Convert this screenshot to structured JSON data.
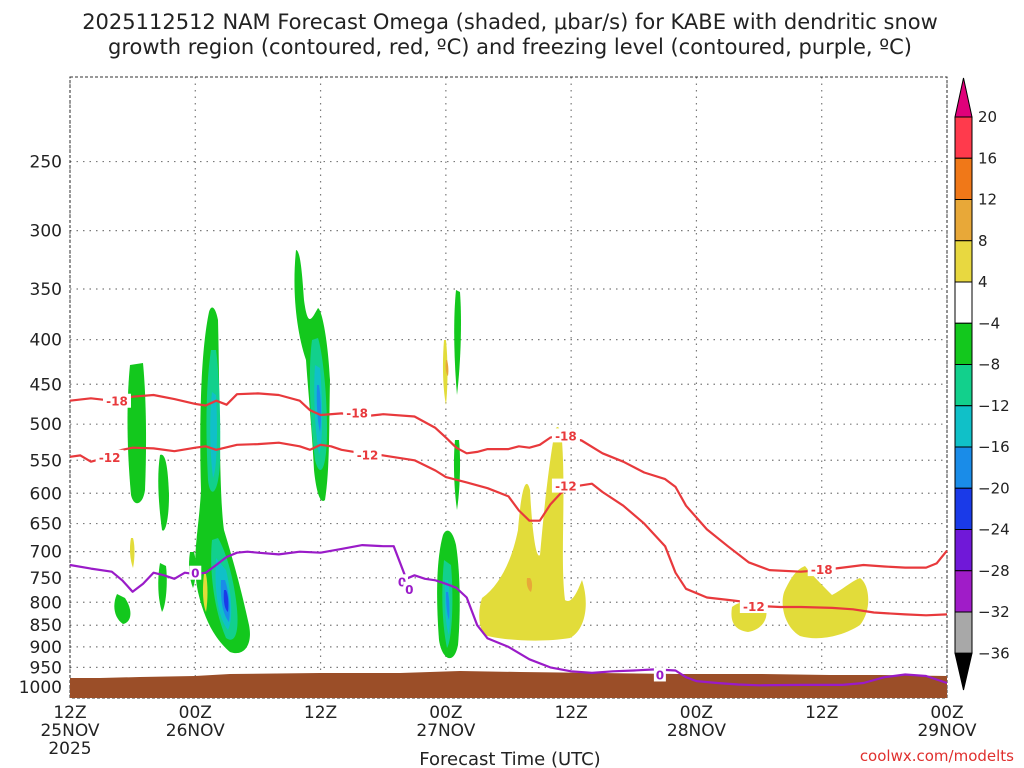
{
  "chart_data": {
    "type": "time-height cross section",
    "title_lines": [
      "2025112512 NAM Forecast Omega (shaded, μbar/s) for KABE with dendritic snow",
      "growth region (contoured, red, ºC) and freezing level (contoured, purple, ºC)"
    ],
    "xlabel": "Forecast Time (UTC)",
    "ylabel": "",
    "x_ticks": [
      {
        "hour": 0,
        "time": "12Z",
        "date": "25NOV",
        "year": "2025"
      },
      {
        "hour": 12,
        "time": "00Z",
        "date": "26NOV",
        "year": ""
      },
      {
        "hour": 24,
        "time": "12Z",
        "date": "",
        "year": ""
      },
      {
        "hour": 36,
        "time": "00Z",
        "date": "27NOV",
        "year": ""
      },
      {
        "hour": 48,
        "time": "12Z",
        "date": "",
        "year": ""
      },
      {
        "hour": 60,
        "time": "00Z",
        "date": "28NOV",
        "year": ""
      },
      {
        "hour": 72,
        "time": "12Z",
        "date": "",
        "year": ""
      },
      {
        "hour": 84,
        "time": "00Z",
        "date": "29NOV",
        "year": ""
      }
    ],
    "x_range_hours": [
      0,
      84
    ],
    "y_levels_hpa": [
      250,
      300,
      350,
      400,
      450,
      500,
      550,
      600,
      650,
      700,
      750,
      800,
      850,
      900,
      950,
      1000
    ],
    "y_range_hpa": [
      200,
      1030
    ],
    "grid": true,
    "colorbar": {
      "ticks": [
        "20",
        "16",
        "12",
        "8",
        "4",
        "−4",
        "−8",
        "−12",
        "−16",
        "−20",
        "−24",
        "−28",
        "−32",
        "−36"
      ],
      "colors": [
        "#ff3a4c",
        "#f07818",
        "#e8a838",
        "#e8d840",
        "#ffffff",
        "#13c81d",
        "#12d08c",
        "#10c0c8",
        "#1a8ce8",
        "#1a3ae8",
        "#7018d8",
        "#a01cc8",
        "#a8a8a8"
      ],
      "top_arrow_color": "#e0007a",
      "bottom_arrow_color": "#000000"
    },
    "contour_labels": [
      {
        "text": "-18",
        "hour": 4.5,
        "hpa": 470,
        "color": "#e8393c"
      },
      {
        "text": "-18",
        "hour": 27.5,
        "hpa": 485,
        "color": "#e8393c"
      },
      {
        "text": "-18",
        "hour": 47.5,
        "hpa": 515,
        "color": "#e8393c"
      },
      {
        "text": "-18",
        "hour": 72.0,
        "hpa": 733,
        "color": "#e8393c"
      },
      {
        "text": "-12",
        "hour": 3.8,
        "hpa": 545,
        "color": "#e8393c"
      },
      {
        "text": "-12",
        "hour": 28.5,
        "hpa": 542,
        "color": "#e8393c"
      },
      {
        "text": "-12",
        "hour": 47.5,
        "hpa": 588,
        "color": "#e8393c"
      },
      {
        "text": "-12",
        "hour": 65.5,
        "hpa": 808,
        "color": "#e8393c"
      },
      {
        "text": "0",
        "hour": 12.0,
        "hpa": 740,
        "color": "#9a1bc8"
      },
      {
        "text": "0",
        "hour": 31.8,
        "hpa": 757,
        "color": "#9a1bc8"
      },
      {
        "text": "0",
        "hour": 32.5,
        "hpa": 772,
        "color": "#9a1bc8"
      },
      {
        "text": "0",
        "hour": 56.5,
        "hpa": 968,
        "color": "#9a1bc8"
      }
    ],
    "series": [
      {
        "name": "-18C isotherm",
        "color": "#e8393c",
        "points": [
          [
            0,
            470
          ],
          [
            2,
            467
          ],
          [
            4,
            470
          ],
          [
            6,
            465
          ],
          [
            8,
            463
          ],
          [
            10,
            468
          ],
          [
            12,
            474
          ],
          [
            13,
            476
          ],
          [
            14,
            470
          ],
          [
            15,
            475
          ],
          [
            16,
            462
          ],
          [
            18,
            461
          ],
          [
            20,
            463
          ],
          [
            22,
            470
          ],
          [
            23,
            482
          ],
          [
            24,
            488
          ],
          [
            26,
            486
          ],
          [
            28,
            490
          ],
          [
            30,
            487
          ],
          [
            33,
            490
          ],
          [
            35,
            505
          ],
          [
            36,
            518
          ],
          [
            37,
            532
          ],
          [
            38,
            540
          ],
          [
            39,
            538
          ],
          [
            40,
            534
          ],
          [
            42,
            534
          ],
          [
            43,
            530
          ],
          [
            44,
            532
          ],
          [
            45,
            528
          ],
          [
            46,
            518
          ],
          [
            47,
            515
          ],
          [
            49,
            522
          ],
          [
            51,
            540
          ],
          [
            53,
            552
          ],
          [
            55,
            568
          ],
          [
            57,
            578
          ],
          [
            58,
            590
          ],
          [
            59,
            620
          ],
          [
            61,
            660
          ],
          [
            63,
            690
          ],
          [
            65,
            720
          ],
          [
            67,
            735
          ],
          [
            70,
            738
          ],
          [
            72,
            735
          ],
          [
            74,
            730
          ],
          [
            76,
            725
          ],
          [
            78,
            728
          ],
          [
            80,
            730
          ],
          [
            82,
            730
          ],
          [
            83,
            722
          ],
          [
            84,
            698
          ]
        ]
      },
      {
        "name": "-12C isotherm",
        "color": "#e8393c",
        "points": [
          [
            0,
            545
          ],
          [
            1,
            543
          ],
          [
            2,
            552
          ],
          [
            3,
            548
          ],
          [
            4,
            540
          ],
          [
            5,
            535
          ],
          [
            6,
            532
          ],
          [
            8,
            533
          ],
          [
            10,
            537
          ],
          [
            12,
            532
          ],
          [
            13,
            530
          ],
          [
            14,
            535
          ],
          [
            16,
            528
          ],
          [
            18,
            527
          ],
          [
            20,
            525
          ],
          [
            22,
            530
          ],
          [
            23,
            535
          ],
          [
            24,
            528
          ],
          [
            25,
            530
          ],
          [
            26,
            535
          ],
          [
            28,
            540
          ],
          [
            30,
            543
          ],
          [
            33,
            550
          ],
          [
            35,
            565
          ],
          [
            36,
            575
          ],
          [
            38,
            583
          ],
          [
            40,
            592
          ],
          [
            42,
            605
          ],
          [
            43,
            628
          ],
          [
            44,
            645
          ],
          [
            45,
            645
          ],
          [
            46,
            618
          ],
          [
            47,
            600
          ],
          [
            48,
            590
          ],
          [
            50,
            585
          ],
          [
            51,
            598
          ],
          [
            53,
            620
          ],
          [
            55,
            650
          ],
          [
            57,
            690
          ],
          [
            58,
            740
          ],
          [
            59,
            772
          ],
          [
            61,
            790
          ],
          [
            63,
            795
          ],
          [
            65,
            800
          ],
          [
            66,
            808
          ],
          [
            68,
            810
          ],
          [
            70,
            810
          ],
          [
            73,
            812
          ],
          [
            75,
            815
          ],
          [
            77,
            822
          ],
          [
            80,
            826
          ],
          [
            82,
            828
          ],
          [
            84,
            826
          ]
        ]
      },
      {
        "name": "0C freezing level",
        "color": "#9a1bc8",
        "points": [
          [
            0,
            725
          ],
          [
            2,
            732
          ],
          [
            4,
            738
          ],
          [
            5,
            755
          ],
          [
            6,
            778
          ],
          [
            7,
            762
          ],
          [
            8,
            740
          ],
          [
            9,
            745
          ],
          [
            10,
            752
          ],
          [
            11,
            740
          ],
          [
            12,
            743
          ],
          [
            13,
            740
          ],
          [
            14,
            725
          ],
          [
            15,
            710
          ],
          [
            16,
            702
          ],
          [
            17,
            700
          ],
          [
            18,
            702
          ],
          [
            20,
            705
          ],
          [
            22,
            700
          ],
          [
            24,
            702
          ],
          [
            26,
            695
          ],
          [
            28,
            688
          ],
          [
            30,
            690
          ],
          [
            31,
            690
          ],
          [
            31.6,
            720
          ],
          [
            32.2,
            752
          ],
          [
            33,
            745
          ],
          [
            34,
            752
          ],
          [
            35,
            755
          ],
          [
            36,
            762
          ],
          [
            37,
            770
          ],
          [
            38,
            790
          ],
          [
            39,
            850
          ],
          [
            40,
            880
          ],
          [
            42,
            900
          ],
          [
            44,
            930
          ],
          [
            46,
            950
          ],
          [
            48,
            960
          ],
          [
            50,
            964
          ],
          [
            52,
            960
          ],
          [
            54,
            958
          ],
          [
            56,
            955
          ],
          [
            58,
            958
          ],
          [
            59,
            975
          ],
          [
            60,
            985
          ],
          [
            62,
            990
          ],
          [
            64,
            994
          ],
          [
            66,
            996
          ],
          [
            70,
            995
          ],
          [
            74,
            995
          ],
          [
            76,
            990
          ],
          [
            78,
            975
          ],
          [
            80,
            968
          ],
          [
            82,
            972
          ],
          [
            84,
            990
          ]
        ]
      }
    ]
  },
  "credit": "coolwx.com/modelts"
}
